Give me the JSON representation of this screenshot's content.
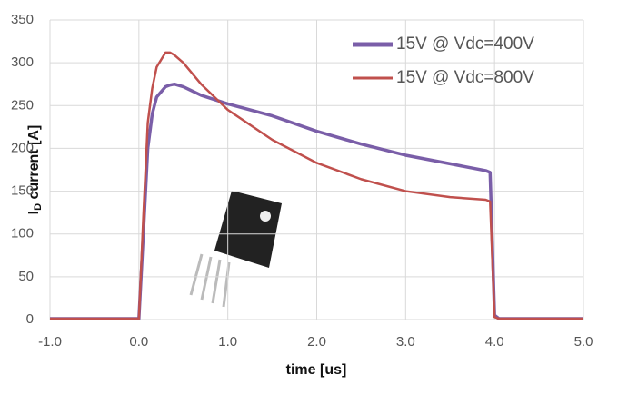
{
  "chart_data": {
    "type": "line",
    "y_label_main": "I",
    "y_label_sub": "D",
    "y_label_rest": " current [A]",
    "x_label": "time [us]",
    "x": [
      -1,
      0,
      0.05,
      0.1,
      0.15,
      0.2,
      0.3,
      0.35,
      0.4,
      0.5,
      0.7,
      1.0,
      1.5,
      2.0,
      2.5,
      3.0,
      3.5,
      3.9,
      3.95,
      4.0,
      4.05,
      5
    ],
    "series": [
      {
        "name": "15V @ Vdc=400V",
        "color": "#7a5ea8",
        "values": [
          1,
          1,
          100,
          200,
          240,
          260,
          272,
          274,
          275,
          272,
          262,
          252,
          238,
          220,
          205,
          192,
          182,
          174,
          172,
          5,
          1,
          1
        ]
      },
      {
        "name": "15V @ Vdc=800V",
        "color": "#c0504d",
        "values": [
          1,
          1,
          120,
          230,
          270,
          295,
          312,
          312,
          309,
          300,
          275,
          245,
          210,
          183,
          164,
          150,
          143,
          140,
          138,
          3,
          1,
          1
        ]
      }
    ],
    "xlim": [
      -1,
      5
    ],
    "xticks": [
      {
        "value": -1,
        "label": "-1.0"
      },
      {
        "value": 0,
        "label": "0.0"
      },
      {
        "value": 1,
        "label": "1.0"
      },
      {
        "value": 2,
        "label": "2.0"
      },
      {
        "value": 3,
        "label": "3.0"
      },
      {
        "value": 4,
        "label": "4.0"
      },
      {
        "value": 5,
        "label": "5.0"
      }
    ],
    "ylim": [
      0,
      350
    ],
    "yticks": [
      0,
      50,
      100,
      150,
      200,
      250,
      300,
      350
    ],
    "grid": true,
    "legend": "top-right"
  }
}
